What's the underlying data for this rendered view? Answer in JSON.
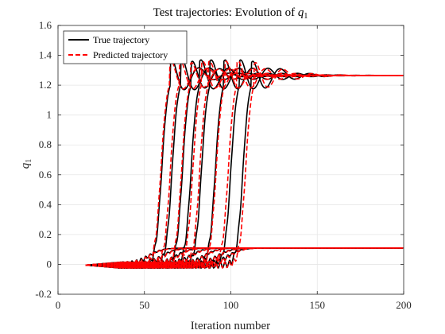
{
  "chart_data": {
    "type": "line",
    "title_prefix": "Test trajectories: Evolution of ",
    "title_var": "q",
    "title_sub": "1",
    "xlabel": "Iteration number",
    "ylabel_var": "q",
    "ylabel_sub": "1",
    "xlim": [
      0,
      200
    ],
    "ylim": [
      -0.2,
      1.6
    ],
    "xticks": [
      0,
      50,
      100,
      150,
      200
    ],
    "yticks": [
      -0.2,
      0,
      0.2,
      0.4,
      0.6,
      0.8,
      1,
      1.2,
      1.4,
      1.6
    ],
    "ytick_labels": [
      "-0.2",
      "0",
      "0.2",
      "0.4",
      "0.6",
      "0.8",
      "1",
      "1.2",
      "1.4",
      "1.6"
    ],
    "grid": true,
    "legend_position": "top-left",
    "legend": [
      {
        "label": "True trajectory",
        "color": "#000000",
        "style": "solid"
      },
      {
        "label": "Predicted trajectory",
        "color": "#ff0000",
        "style": "dashed"
      }
    ],
    "x_start": 16,
    "high_final": 1.27,
    "low_final": 0.115,
    "high_trajectories": [
      {
        "rise": 60,
        "overshoot": 1.44,
        "pred_shift": -0.5
      },
      {
        "rise": 66,
        "overshoot": 1.44,
        "pred_shift": -1.0
      },
      {
        "rise": 72,
        "overshoot": 1.42,
        "pred_shift": -0.5
      },
      {
        "rise": 77,
        "overshoot": 1.43,
        "pred_shift": 1.0
      },
      {
        "rise": 83,
        "overshoot": 1.43,
        "pred_shift": -1.0
      },
      {
        "rise": 91,
        "overshoot": 1.43,
        "pred_shift": 0.5
      },
      {
        "rise": 100,
        "overshoot": 1.43,
        "pred_shift": -1.5
      },
      {
        "rise": 107,
        "overshoot": 1.42,
        "pred_shift": 1.5
      }
    ],
    "low_trajectories": [
      {
        "rise": 52
      },
      {
        "rise": 60
      },
      {
        "rise": 68
      },
      {
        "rise": 76
      },
      {
        "rise": 84
      },
      {
        "rise": 92
      },
      {
        "rise": 98
      }
    ]
  }
}
